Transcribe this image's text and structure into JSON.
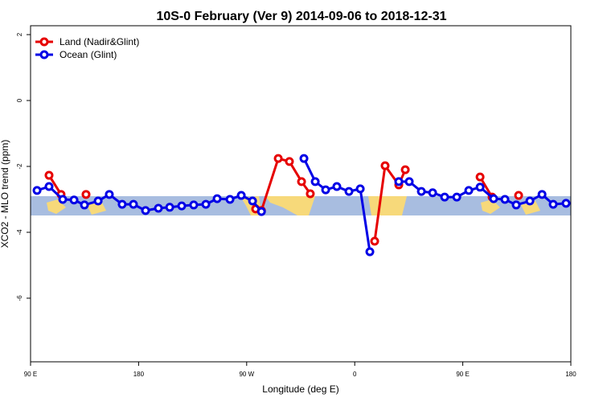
{
  "chart_data": {
    "type": "line",
    "title": "10S-0 February (Ver 9)   2014-09-06 to 2018-12-31",
    "x_label": "Longitude (deg E)",
    "y_label": "XCO2 - MLO trend (ppm)",
    "xlim": [
      90,
      540
    ],
    "ylim": [
      -7.93,
      2.27
    ],
    "xticks": [
      {
        "value": 90,
        "label": "90 E"
      },
      180,
      {
        "value": 270,
        "label": "90 W"
      },
      {
        "value": 360,
        "label": "0"
      },
      {
        "value": 450,
        "label": "90 E"
      },
      {
        "value": 540,
        "label": "180"
      }
    ],
    "yticks": [
      2,
      0,
      -2,
      -4,
      -6
    ],
    "legend": "top-left",
    "series": [
      {
        "name": "Land (Nadir&Glint)",
        "color": "#e60000",
        "x": [
          105.4,
          115.4,
          125.5,
          136.2,
          206.5,
          277.5,
          282.3,
          296.3,
          305.6,
          315.7,
          323.0,
          349.8,
          376.6,
          385.3,
          396.7,
          402.1,
          432.9,
          464.4,
          474.4,
          485.1,
          496.5
        ],
        "values": [
          -2.27,
          -2.85,
          null,
          -2.85,
          null,
          -3.29,
          -3.34,
          -1.76,
          -1.85,
          -2.46,
          -2.83,
          null,
          -4.27,
          -1.98,
          -2.56,
          -2.1,
          null,
          -2.32,
          -2.93,
          null,
          -2.88
        ]
      },
      {
        "name": "Ocean (Glint)",
        "color": "#0000e6",
        "x": [
          95.4,
          105.4,
          116.8,
          126.2,
          134.9,
          146.3,
          155.6,
          166.3,
          175.7,
          185.8,
          196.5,
          205.9,
          215.9,
          225.9,
          236.0,
          245.4,
          256.1,
          265.5,
          274.9,
          282.3,
          300.0,
          317.7,
          327.1,
          335.8,
          345.1,
          355.2,
          364.6,
          372.6,
          385.0,
          396.7,
          405.4,
          415.5,
          424.9,
          434.9,
          445.0,
          455.0,
          464.4,
          475.7,
          485.1,
          494.5,
          505.9,
          516.0,
          525.3,
          536.0
        ],
        "values": [
          -2.73,
          -2.61,
          -3.0,
          -3.02,
          -3.17,
          -3.05,
          -2.85,
          -3.15,
          -3.15,
          -3.34,
          -3.27,
          -3.24,
          -3.2,
          -3.17,
          -3.15,
          -2.98,
          -3.0,
          -2.88,
          -3.05,
          -3.37,
          null,
          -1.76,
          -2.46,
          -2.71,
          -2.61,
          -2.76,
          -2.68,
          -4.59,
          null,
          -2.46,
          -2.46,
          -2.76,
          -2.8,
          -2.93,
          -2.93,
          -2.73,
          -2.63,
          -2.98,
          -3.0,
          -3.17,
          -3.05,
          -2.85,
          -3.15,
          -3.12
        ]
      }
    ]
  }
}
